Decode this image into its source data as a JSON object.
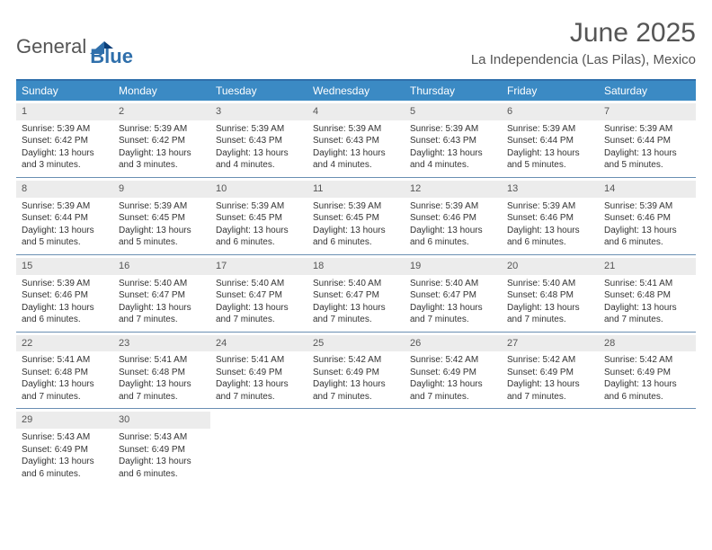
{
  "logo": {
    "textA": "General",
    "textB": "Blue"
  },
  "title": "June 2025",
  "subtitle": "La Independencia (Las Pilas), Mexico",
  "colors": {
    "header_bg": "#3b8ac4",
    "header_text": "#ffffff",
    "border": "#6a8fb3",
    "daynum_bg": "#ececec",
    "text": "#333333",
    "title_color": "#555555"
  },
  "weekdays": [
    "Sunday",
    "Monday",
    "Tuesday",
    "Wednesday",
    "Thursday",
    "Friday",
    "Saturday"
  ],
  "weeks": [
    [
      {
        "n": "1",
        "sr": "Sunrise: 5:39 AM",
        "ss": "Sunset: 6:42 PM",
        "d1": "Daylight: 13 hours",
        "d2": "and 3 minutes."
      },
      {
        "n": "2",
        "sr": "Sunrise: 5:39 AM",
        "ss": "Sunset: 6:42 PM",
        "d1": "Daylight: 13 hours",
        "d2": "and 3 minutes."
      },
      {
        "n": "3",
        "sr": "Sunrise: 5:39 AM",
        "ss": "Sunset: 6:43 PM",
        "d1": "Daylight: 13 hours",
        "d2": "and 4 minutes."
      },
      {
        "n": "4",
        "sr": "Sunrise: 5:39 AM",
        "ss": "Sunset: 6:43 PM",
        "d1": "Daylight: 13 hours",
        "d2": "and 4 minutes."
      },
      {
        "n": "5",
        "sr": "Sunrise: 5:39 AM",
        "ss": "Sunset: 6:43 PM",
        "d1": "Daylight: 13 hours",
        "d2": "and 4 minutes."
      },
      {
        "n": "6",
        "sr": "Sunrise: 5:39 AM",
        "ss": "Sunset: 6:44 PM",
        "d1": "Daylight: 13 hours",
        "d2": "and 5 minutes."
      },
      {
        "n": "7",
        "sr": "Sunrise: 5:39 AM",
        "ss": "Sunset: 6:44 PM",
        "d1": "Daylight: 13 hours",
        "d2": "and 5 minutes."
      }
    ],
    [
      {
        "n": "8",
        "sr": "Sunrise: 5:39 AM",
        "ss": "Sunset: 6:44 PM",
        "d1": "Daylight: 13 hours",
        "d2": "and 5 minutes."
      },
      {
        "n": "9",
        "sr": "Sunrise: 5:39 AM",
        "ss": "Sunset: 6:45 PM",
        "d1": "Daylight: 13 hours",
        "d2": "and 5 minutes."
      },
      {
        "n": "10",
        "sr": "Sunrise: 5:39 AM",
        "ss": "Sunset: 6:45 PM",
        "d1": "Daylight: 13 hours",
        "d2": "and 6 minutes."
      },
      {
        "n": "11",
        "sr": "Sunrise: 5:39 AM",
        "ss": "Sunset: 6:45 PM",
        "d1": "Daylight: 13 hours",
        "d2": "and 6 minutes."
      },
      {
        "n": "12",
        "sr": "Sunrise: 5:39 AM",
        "ss": "Sunset: 6:46 PM",
        "d1": "Daylight: 13 hours",
        "d2": "and 6 minutes."
      },
      {
        "n": "13",
        "sr": "Sunrise: 5:39 AM",
        "ss": "Sunset: 6:46 PM",
        "d1": "Daylight: 13 hours",
        "d2": "and 6 minutes."
      },
      {
        "n": "14",
        "sr": "Sunrise: 5:39 AM",
        "ss": "Sunset: 6:46 PM",
        "d1": "Daylight: 13 hours",
        "d2": "and 6 minutes."
      }
    ],
    [
      {
        "n": "15",
        "sr": "Sunrise: 5:39 AM",
        "ss": "Sunset: 6:46 PM",
        "d1": "Daylight: 13 hours",
        "d2": "and 6 minutes."
      },
      {
        "n": "16",
        "sr": "Sunrise: 5:40 AM",
        "ss": "Sunset: 6:47 PM",
        "d1": "Daylight: 13 hours",
        "d2": "and 7 minutes."
      },
      {
        "n": "17",
        "sr": "Sunrise: 5:40 AM",
        "ss": "Sunset: 6:47 PM",
        "d1": "Daylight: 13 hours",
        "d2": "and 7 minutes."
      },
      {
        "n": "18",
        "sr": "Sunrise: 5:40 AM",
        "ss": "Sunset: 6:47 PM",
        "d1": "Daylight: 13 hours",
        "d2": "and 7 minutes."
      },
      {
        "n": "19",
        "sr": "Sunrise: 5:40 AM",
        "ss": "Sunset: 6:47 PM",
        "d1": "Daylight: 13 hours",
        "d2": "and 7 minutes."
      },
      {
        "n": "20",
        "sr": "Sunrise: 5:40 AM",
        "ss": "Sunset: 6:48 PM",
        "d1": "Daylight: 13 hours",
        "d2": "and 7 minutes."
      },
      {
        "n": "21",
        "sr": "Sunrise: 5:41 AM",
        "ss": "Sunset: 6:48 PM",
        "d1": "Daylight: 13 hours",
        "d2": "and 7 minutes."
      }
    ],
    [
      {
        "n": "22",
        "sr": "Sunrise: 5:41 AM",
        "ss": "Sunset: 6:48 PM",
        "d1": "Daylight: 13 hours",
        "d2": "and 7 minutes."
      },
      {
        "n": "23",
        "sr": "Sunrise: 5:41 AM",
        "ss": "Sunset: 6:48 PM",
        "d1": "Daylight: 13 hours",
        "d2": "and 7 minutes."
      },
      {
        "n": "24",
        "sr": "Sunrise: 5:41 AM",
        "ss": "Sunset: 6:49 PM",
        "d1": "Daylight: 13 hours",
        "d2": "and 7 minutes."
      },
      {
        "n": "25",
        "sr": "Sunrise: 5:42 AM",
        "ss": "Sunset: 6:49 PM",
        "d1": "Daylight: 13 hours",
        "d2": "and 7 minutes."
      },
      {
        "n": "26",
        "sr": "Sunrise: 5:42 AM",
        "ss": "Sunset: 6:49 PM",
        "d1": "Daylight: 13 hours",
        "d2": "and 7 minutes."
      },
      {
        "n": "27",
        "sr": "Sunrise: 5:42 AM",
        "ss": "Sunset: 6:49 PM",
        "d1": "Daylight: 13 hours",
        "d2": "and 7 minutes."
      },
      {
        "n": "28",
        "sr": "Sunrise: 5:42 AM",
        "ss": "Sunset: 6:49 PM",
        "d1": "Daylight: 13 hours",
        "d2": "and 6 minutes."
      }
    ],
    [
      {
        "n": "29",
        "sr": "Sunrise: 5:43 AM",
        "ss": "Sunset: 6:49 PM",
        "d1": "Daylight: 13 hours",
        "d2": "and 6 minutes."
      },
      {
        "n": "30",
        "sr": "Sunrise: 5:43 AM",
        "ss": "Sunset: 6:49 PM",
        "d1": "Daylight: 13 hours",
        "d2": "and 6 minutes."
      },
      null,
      null,
      null,
      null,
      null
    ]
  ]
}
